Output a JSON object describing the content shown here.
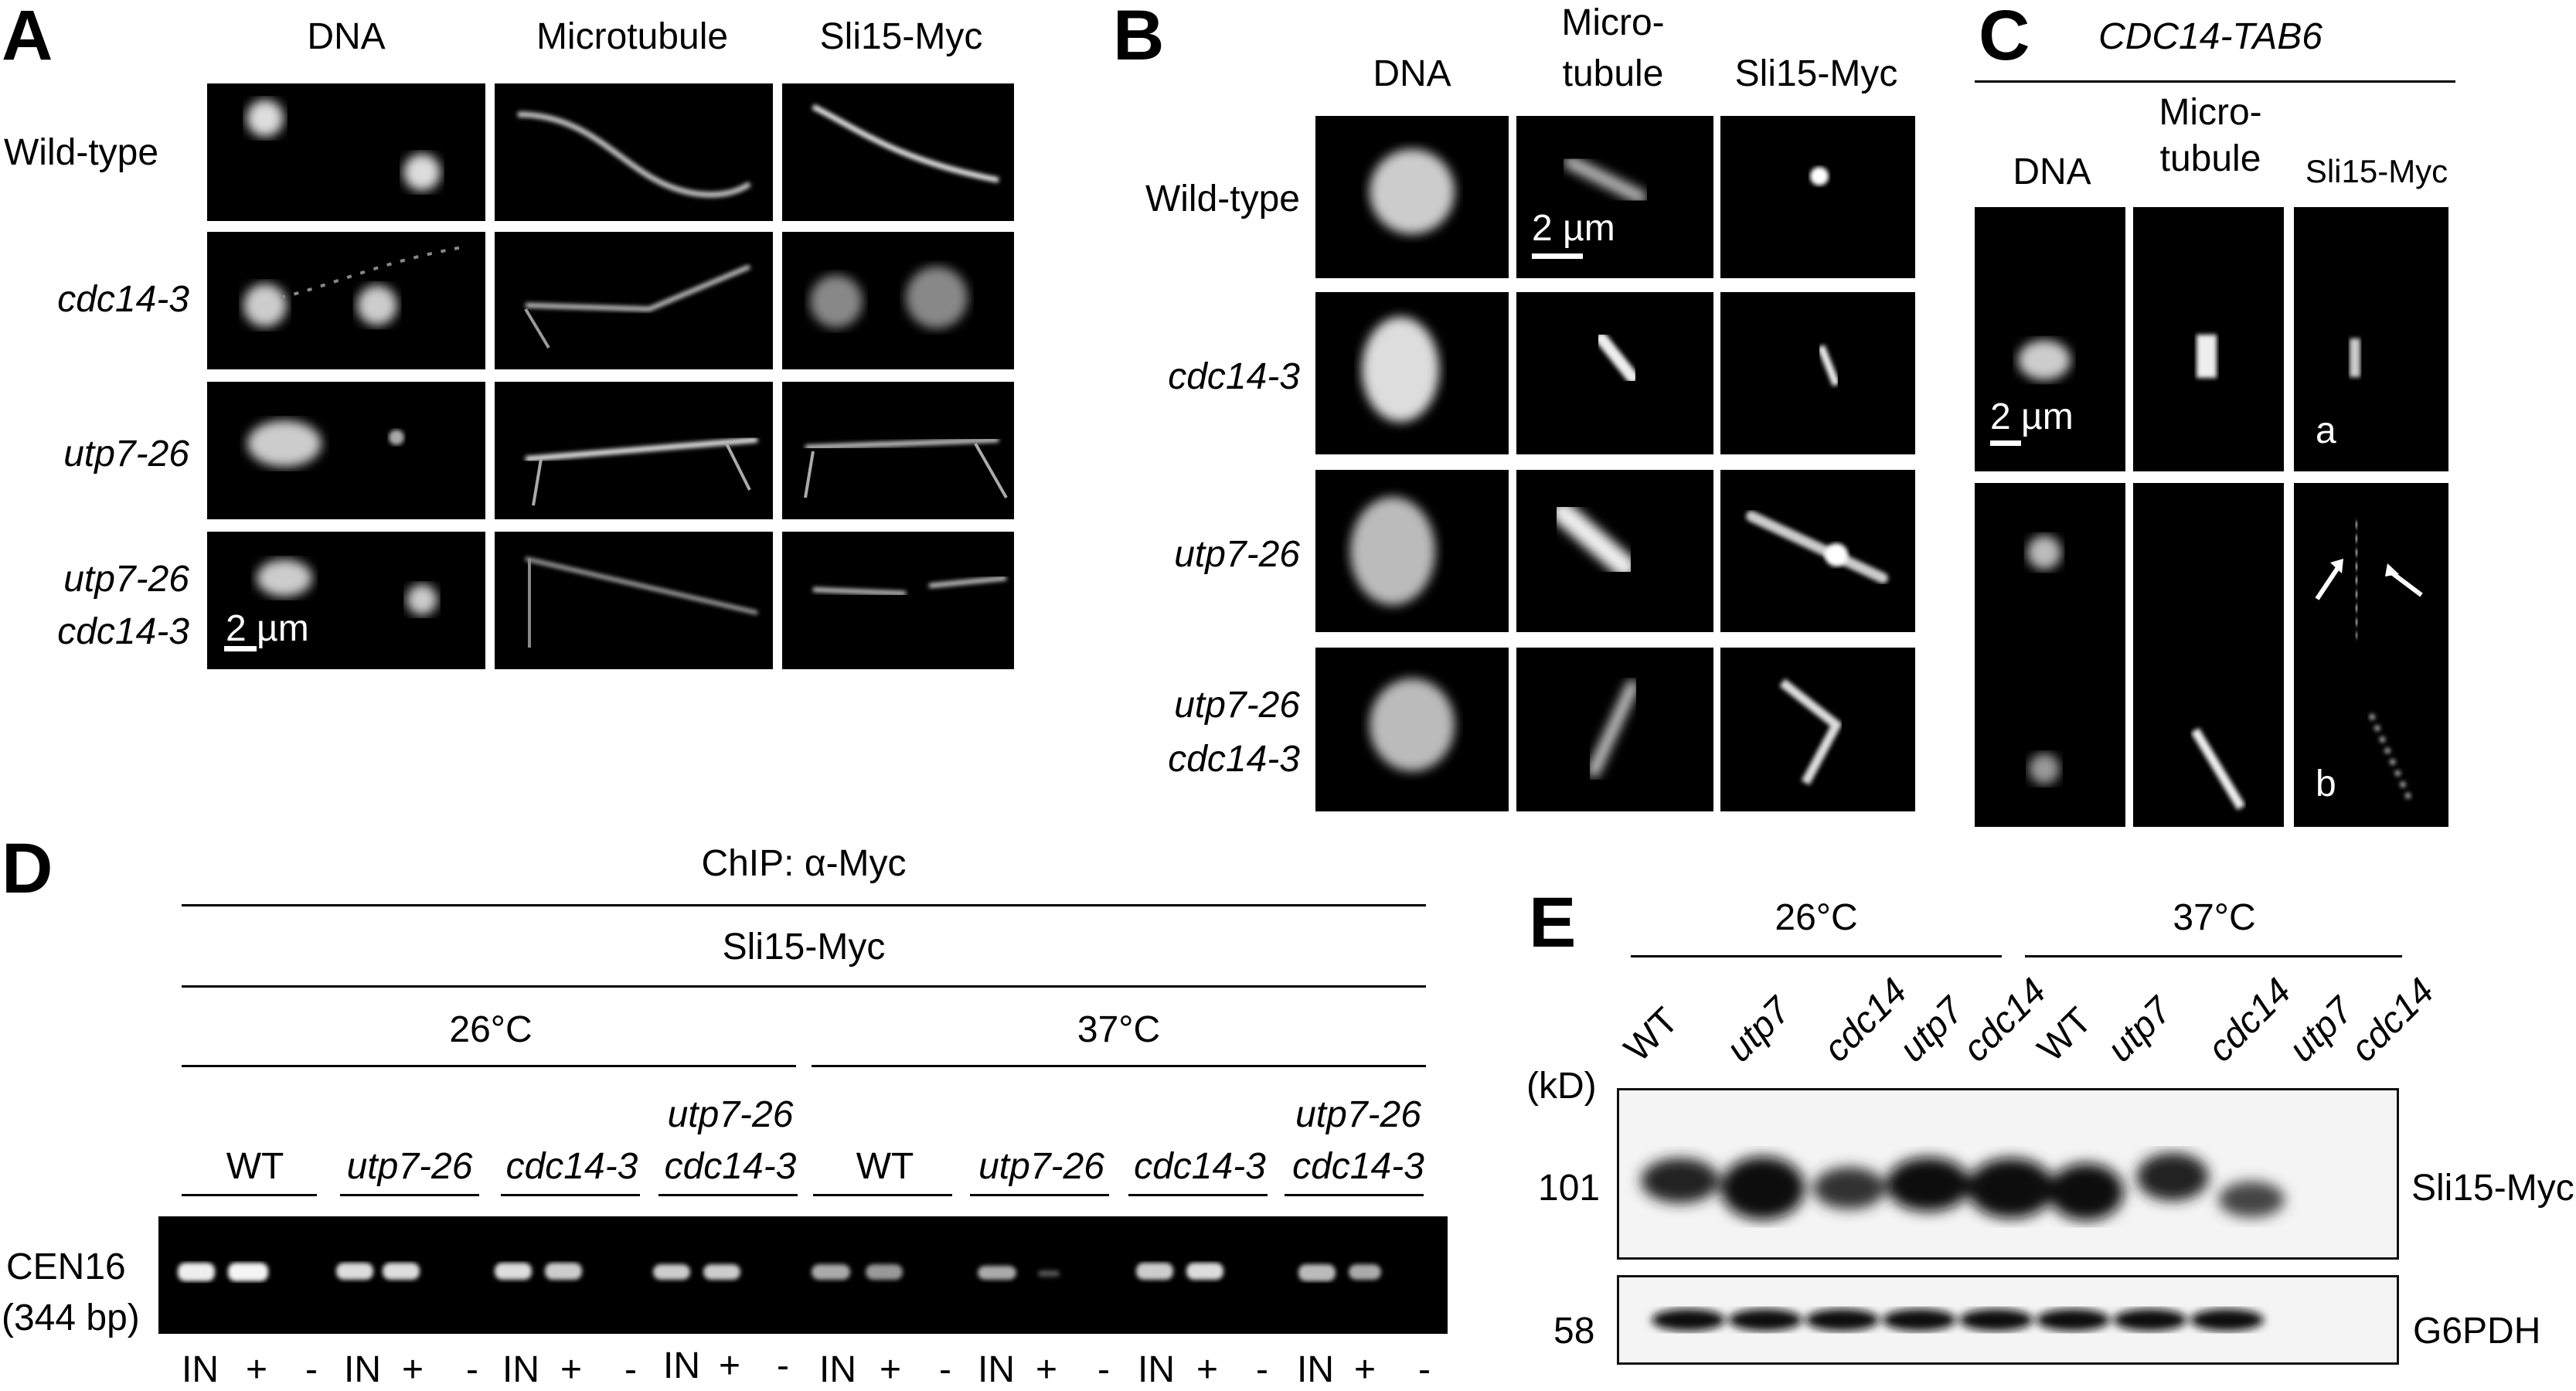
{
  "panel_labels": {
    "a": "A",
    "b": "B",
    "c": "C",
    "d": "D",
    "e": "E"
  },
  "panel_a": {
    "col_headers": [
      "DNA",
      "Microtubule",
      "Sli15-Myc"
    ],
    "rows": [
      "Wild-type",
      "cdc14-3",
      "utp7-26",
      "utp7-26",
      "cdc14-3"
    ],
    "scale_label": "2 µm"
  },
  "panel_b": {
    "col_headers": [
      "DNA",
      "Micro-",
      "tubule",
      "Sli15-Myc"
    ],
    "rows": [
      "Wild-type",
      "cdc14-3",
      "utp7-26",
      "utp7-26",
      "cdc14-3"
    ],
    "scale_label": "2 µm"
  },
  "panel_c": {
    "title": "CDC14-TAB6",
    "col_headers": [
      "DNA",
      "Micro-",
      "tubule",
      "Sli15-Myc"
    ],
    "scale_label": "2 µm",
    "sublabels": [
      "a",
      "b"
    ],
    "arrow_icons": [
      "arrow-up-right-icon",
      "arrow-up-left-icon"
    ]
  },
  "panel_d": {
    "title": "ChIP: α-Myc",
    "subtitle": "Sli15-Myc",
    "temps": [
      "26°C",
      "37°C"
    ],
    "strains": [
      "WT",
      "utp7-26",
      "cdc14-3",
      "utp7-26",
      "cdc14-3",
      "WT",
      "utp7-26",
      "cdc14-3",
      "utp7-26",
      "cdc14-3"
    ],
    "row_label": "CEN16",
    "row_sublabel": "(344 bp)",
    "lane_labels": [
      "IN",
      "+",
      "-"
    ]
  },
  "panel_e": {
    "temps": [
      "26°C",
      "37°C"
    ],
    "lanes": [
      "WT",
      "utp7",
      "cdc14",
      "utp7",
      "cdc14",
      "WT",
      "utp7",
      "cdc14",
      "utp7",
      "cdc14"
    ],
    "kd_label": "(kD)",
    "markers": [
      "101",
      "58"
    ],
    "bands": [
      "Sli15-Myc",
      "G6PDH"
    ]
  }
}
